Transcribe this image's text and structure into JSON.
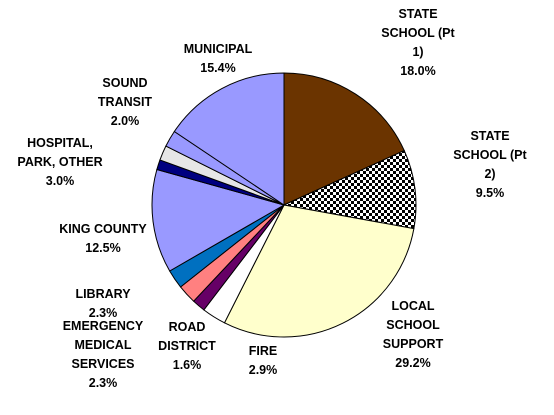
{
  "chart_data": {
    "type": "pie",
    "title": "",
    "slices": [
      {
        "label_lines": [
          "STATE",
          "SCHOOL  (Pt",
          "1)"
        ],
        "percent_text": "18.0%",
        "value": 18.0,
        "color": "#6b3400",
        "pattern": "none"
      },
      {
        "label_lines": [
          "STATE",
          "SCHOOL  (Pt",
          "2)"
        ],
        "percent_text": "9.5%",
        "value": 9.5,
        "color": "#ffffff",
        "pattern": "checker"
      },
      {
        "label_lines": [
          "LOCAL",
          "SCHOOL",
          "SUPPORT"
        ],
        "percent_text": "29.2%",
        "value": 29.2,
        "color": "#ffffcc",
        "pattern": "none"
      },
      {
        "label_lines": [
          "FIRE"
        ],
        "percent_text": "2.9%",
        "value": 2.9,
        "color": "#ffffff",
        "pattern": "none"
      },
      {
        "label_lines": [
          "ROAD",
          "DISTRICT"
        ],
        "percent_text": "1.6%",
        "value": 1.6,
        "color": "#660066",
        "pattern": "none"
      },
      {
        "label_lines": [
          "EMERGENCY",
          "MEDICAL",
          "SERVICES"
        ],
        "percent_text": "2.3%",
        "value": 2.3,
        "color": "#ff8080",
        "pattern": "none"
      },
      {
        "label_lines": [
          "LIBRARY"
        ],
        "percent_text": "2.3%",
        "value": 2.3,
        "color": "#0070c0",
        "pattern": "none"
      },
      {
        "label_lines": [
          "KING COUNTY"
        ],
        "percent_text": "12.5%",
        "value": 12.5,
        "color": "#9999ff",
        "pattern": "none"
      },
      {
        "label_lines": [],
        "percent_text": "",
        "value": 1.2,
        "color": "#000080",
        "pattern": "none"
      },
      {
        "label_lines": [
          "HOSPITAL,",
          "PARK, OTHER"
        ],
        "percent_text": "3.0%",
        "value": 1.8,
        "color": "#e6e6e6",
        "pattern": "none"
      },
      {
        "label_lines": [
          "SOUND",
          "TRANSIT"
        ],
        "percent_text": "2.0%",
        "value": 2.0,
        "color": "#9999ff",
        "pattern": "none"
      },
      {
        "label_lines": [
          "MUNICIPAL"
        ],
        "percent_text": "15.4%",
        "value": 15.4,
        "color": "#9999ff",
        "pattern": "none"
      }
    ]
  }
}
